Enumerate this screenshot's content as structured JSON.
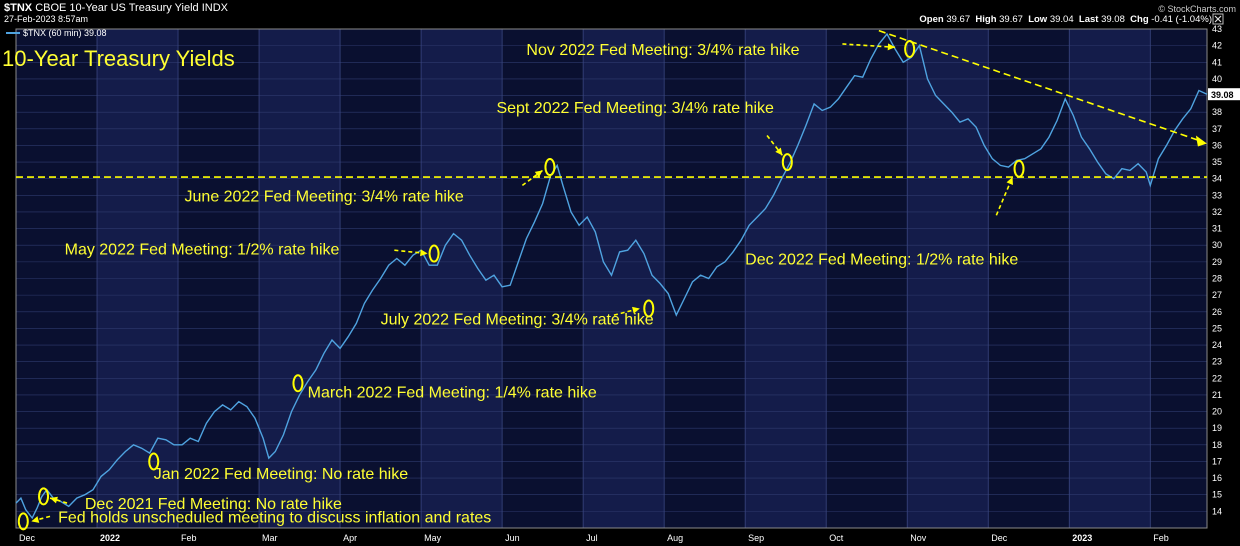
{
  "header": {
    "symbol": "$TNX",
    "description": "CBOE 10-Year US Treasury Yield INDX",
    "datetime": "27-Feb-2023 8:57am",
    "credit": "© StockCharts.com",
    "legend_label": "$TNX (60 min) 39.08",
    "open_label": "Open",
    "open_value": "39.67",
    "high_label": "High",
    "high_value": "39.67",
    "low_label": "Low",
    "low_value": "39.04",
    "last_label": "Last",
    "last_value": "39.08",
    "chg_label": "Chg",
    "chg_value": "-0.41 (-1.04%)",
    "close_icon": "close-icon"
  },
  "chart_data": {
    "type": "line",
    "title": "10-Year Treasury Yields",
    "series_name": "$TNX (60 min)",
    "last_value_label": "39.08",
    "ylim": [
      13,
      43
    ],
    "yticks": [
      14,
      15,
      16,
      17,
      18,
      19,
      20,
      21,
      22,
      23,
      24,
      25,
      26,
      27,
      28,
      29,
      30,
      31,
      32,
      33,
      34,
      35,
      36,
      37,
      38,
      39,
      40,
      41,
      42,
      43
    ],
    "xlim": [
      0,
      14.7
    ],
    "xticks": [
      {
        "x": 0.0,
        "label": "Dec",
        "bold": false
      },
      {
        "x": 1.0,
        "label": "2022",
        "bold": true
      },
      {
        "x": 2.0,
        "label": "Feb",
        "bold": false
      },
      {
        "x": 3.0,
        "label": "Mar",
        "bold": false
      },
      {
        "x": 4.0,
        "label": "Apr",
        "bold": false
      },
      {
        "x": 5.0,
        "label": "May",
        "bold": false
      },
      {
        "x": 6.0,
        "label": "Jun",
        "bold": false
      },
      {
        "x": 7.0,
        "label": "Jul",
        "bold": false
      },
      {
        "x": 8.0,
        "label": "Aug",
        "bold": false
      },
      {
        "x": 9.0,
        "label": "Sep",
        "bold": false
      },
      {
        "x": 10.0,
        "label": "Oct",
        "bold": false
      },
      {
        "x": 11.0,
        "label": "Nov",
        "bold": false
      },
      {
        "x": 12.0,
        "label": "Dec",
        "bold": false
      },
      {
        "x": 13.0,
        "label": "2023",
        "bold": true
      },
      {
        "x": 14.0,
        "label": "Feb",
        "bold": false
      }
    ],
    "series": [
      {
        "name": "$TNX",
        "points": [
          [
            0.0,
            14.5
          ],
          [
            0.06,
            14.8
          ],
          [
            0.12,
            14.1
          ],
          [
            0.2,
            13.6
          ],
          [
            0.26,
            14.2
          ],
          [
            0.32,
            14.9
          ],
          [
            0.38,
            15.3
          ],
          [
            0.46,
            14.8
          ],
          [
            0.55,
            14.6
          ],
          [
            0.65,
            14.3
          ],
          [
            0.75,
            14.8
          ],
          [
            0.85,
            15.0
          ],
          [
            0.95,
            15.3
          ],
          [
            1.05,
            16.1
          ],
          [
            1.15,
            16.5
          ],
          [
            1.25,
            17.1
          ],
          [
            1.35,
            17.6
          ],
          [
            1.45,
            18.0
          ],
          [
            1.55,
            17.8
          ],
          [
            1.65,
            17.5
          ],
          [
            1.75,
            18.4
          ],
          [
            1.85,
            18.3
          ],
          [
            1.95,
            18.0
          ],
          [
            2.05,
            18.0
          ],
          [
            2.15,
            18.4
          ],
          [
            2.25,
            18.2
          ],
          [
            2.35,
            19.3
          ],
          [
            2.45,
            20.0
          ],
          [
            2.55,
            20.4
          ],
          [
            2.65,
            20.1
          ],
          [
            2.75,
            20.6
          ],
          [
            2.85,
            20.3
          ],
          [
            2.95,
            19.6
          ],
          [
            3.05,
            18.4
          ],
          [
            3.12,
            17.2
          ],
          [
            3.2,
            17.6
          ],
          [
            3.3,
            18.6
          ],
          [
            3.4,
            20.0
          ],
          [
            3.5,
            21.0
          ],
          [
            3.6,
            21.8
          ],
          [
            3.7,
            22.5
          ],
          [
            3.8,
            23.5
          ],
          [
            3.9,
            24.3
          ],
          [
            4.0,
            23.8
          ],
          [
            4.1,
            24.5
          ],
          [
            4.2,
            25.3
          ],
          [
            4.3,
            26.5
          ],
          [
            4.4,
            27.3
          ],
          [
            4.5,
            28.0
          ],
          [
            4.6,
            28.8
          ],
          [
            4.7,
            29.2
          ],
          [
            4.8,
            28.8
          ],
          [
            4.9,
            29.4
          ],
          [
            5.0,
            29.7
          ],
          [
            5.1,
            28.8
          ],
          [
            5.2,
            28.8
          ],
          [
            5.3,
            30.0
          ],
          [
            5.4,
            30.7
          ],
          [
            5.5,
            30.3
          ],
          [
            5.6,
            29.4
          ],
          [
            5.7,
            28.6
          ],
          [
            5.8,
            27.9
          ],
          [
            5.9,
            28.2
          ],
          [
            6.0,
            27.5
          ],
          [
            6.1,
            27.6
          ],
          [
            6.2,
            29.0
          ],
          [
            6.3,
            30.4
          ],
          [
            6.4,
            31.4
          ],
          [
            6.5,
            32.5
          ],
          [
            6.6,
            34.2
          ],
          [
            6.68,
            34.8
          ],
          [
            6.75,
            33.6
          ],
          [
            6.85,
            32.0
          ],
          [
            6.95,
            31.2
          ],
          [
            7.05,
            31.7
          ],
          [
            7.15,
            30.8
          ],
          [
            7.25,
            29.0
          ],
          [
            7.35,
            28.2
          ],
          [
            7.45,
            29.6
          ],
          [
            7.55,
            29.7
          ],
          [
            7.65,
            30.3
          ],
          [
            7.75,
            29.5
          ],
          [
            7.85,
            28.2
          ],
          [
            7.95,
            27.7
          ],
          [
            8.05,
            27.1
          ],
          [
            8.15,
            25.8
          ],
          [
            8.25,
            26.8
          ],
          [
            8.35,
            27.8
          ],
          [
            8.45,
            28.2
          ],
          [
            8.55,
            28.0
          ],
          [
            8.65,
            28.7
          ],
          [
            8.75,
            29.0
          ],
          [
            8.85,
            29.6
          ],
          [
            8.95,
            30.3
          ],
          [
            9.05,
            31.2
          ],
          [
            9.15,
            31.7
          ],
          [
            9.25,
            32.2
          ],
          [
            9.35,
            33.0
          ],
          [
            9.45,
            34.0
          ],
          [
            9.55,
            34.9
          ],
          [
            9.65,
            36.0
          ],
          [
            9.75,
            37.2
          ],
          [
            9.85,
            38.5
          ],
          [
            9.95,
            38.1
          ],
          [
            10.05,
            38.3
          ],
          [
            10.15,
            38.8
          ],
          [
            10.25,
            39.5
          ],
          [
            10.35,
            40.2
          ],
          [
            10.45,
            40.1
          ],
          [
            10.55,
            41.2
          ],
          [
            10.65,
            42.1
          ],
          [
            10.75,
            42.7
          ],
          [
            10.85,
            41.8
          ],
          [
            10.95,
            41.0
          ],
          [
            11.05,
            41.3
          ],
          [
            11.15,
            42.0
          ],
          [
            11.25,
            40.0
          ],
          [
            11.35,
            39.0
          ],
          [
            11.45,
            38.5
          ],
          [
            11.55,
            38.0
          ],
          [
            11.65,
            37.4
          ],
          [
            11.75,
            37.6
          ],
          [
            11.85,
            37.1
          ],
          [
            11.95,
            36.0
          ],
          [
            12.05,
            35.2
          ],
          [
            12.15,
            34.8
          ],
          [
            12.25,
            34.7
          ],
          [
            12.35,
            35.1
          ],
          [
            12.45,
            35.2
          ],
          [
            12.55,
            35.5
          ],
          [
            12.65,
            35.8
          ],
          [
            12.75,
            36.5
          ],
          [
            12.85,
            37.5
          ],
          [
            12.95,
            38.8
          ],
          [
            13.05,
            37.8
          ],
          [
            13.15,
            36.5
          ],
          [
            13.25,
            35.8
          ],
          [
            13.35,
            35.0
          ],
          [
            13.45,
            34.3
          ],
          [
            13.55,
            34.0
          ],
          [
            13.65,
            34.6
          ],
          [
            13.75,
            34.5
          ],
          [
            13.85,
            34.9
          ],
          [
            13.95,
            34.4
          ],
          [
            14.0,
            33.6
          ],
          [
            14.1,
            35.2
          ],
          [
            14.2,
            36.0
          ],
          [
            14.3,
            36.9
          ],
          [
            14.4,
            37.6
          ],
          [
            14.5,
            38.2
          ],
          [
            14.6,
            39.3
          ],
          [
            14.7,
            39.08
          ]
        ]
      }
    ],
    "horizontal_line": {
      "y": 34.1,
      "style": "dashed",
      "color": "#ffff00"
    },
    "trend_line": {
      "from": [
        10.65,
        42.9
      ],
      "to": [
        14.6,
        36.3
      ],
      "style": "dashed",
      "color": "#ffff00"
    },
    "annotations": [
      {
        "text": "Fed holds unscheduled meeting to discuss inflation and rates",
        "marker": [
          0.09,
          13.4
        ],
        "text_anchor_xy": [
          0.52,
          13.7
        ]
      },
      {
        "text": "Dec 2021 Fed Meeting: No rate hike",
        "marker": [
          0.34,
          14.9
        ],
        "text_anchor_xy": [
          0.85,
          14.5
        ]
      },
      {
        "text": "Jan 2022 Fed Meeting: No rate hike",
        "marker": [
          1.7,
          17.0
        ],
        "text_anchor_xy": [
          1.7,
          16.3
        ]
      },
      {
        "text": "March 2022 Fed Meeting: 1/4% rate hike",
        "marker": [
          3.48,
          21.7
        ],
        "text_anchor_xy": [
          3.6,
          21.2
        ]
      },
      {
        "text": "May 2022 Fed Meeting: 1/2% rate hike",
        "marker": [
          5.16,
          29.5
        ],
        "text_anchor_xy": [
          0.6,
          29.8
        ]
      },
      {
        "text": "June 2022 Fed Meeting: 3/4% rate hike",
        "marker": [
          6.59,
          34.7
        ],
        "text_anchor_xy": [
          2.08,
          33.0
        ]
      },
      {
        "text": "July 2022 Fed Meeting: 3/4% rate hike",
        "marker": [
          7.81,
          26.2
        ],
        "text_anchor_xy": [
          4.5,
          25.6
        ]
      },
      {
        "text": "Sept 2022 Fed Meeting: 3/4% rate hike",
        "marker": [
          9.52,
          35.0
        ],
        "text_anchor_xy": [
          5.93,
          38.3
        ]
      },
      {
        "text": "Nov 2022 Fed Meeting: 3/4% rate hike",
        "marker": [
          11.03,
          41.8
        ],
        "text_anchor_xy": [
          6.3,
          41.8
        ]
      },
      {
        "text": "Dec 2022 Fed Meeting: 1/2% rate hike",
        "marker": [
          12.38,
          34.6
        ],
        "text_anchor_xy": [
          9.0,
          29.2
        ]
      }
    ],
    "arrows": [
      {
        "from": [
          0.63,
          14.5
        ],
        "to": [
          0.42,
          14.8
        ]
      },
      {
        "from": [
          0.42,
          13.7
        ],
        "to": [
          0.19,
          13.4
        ]
      },
      {
        "from": [
          4.67,
          29.7
        ],
        "to": [
          5.08,
          29.5
        ]
      },
      {
        "from": [
          6.25,
          33.6
        ],
        "to": [
          6.5,
          34.5
        ]
      },
      {
        "from": [
          7.38,
          25.8
        ],
        "to": [
          7.7,
          26.2
        ]
      },
      {
        "from": [
          9.27,
          36.6
        ],
        "to": [
          9.46,
          35.4
        ]
      },
      {
        "from": [
          10.2,
          42.1
        ],
        "to": [
          10.85,
          41.9
        ]
      },
      {
        "from": [
          12.1,
          31.8
        ],
        "to": [
          12.3,
          34.1
        ]
      }
    ]
  }
}
